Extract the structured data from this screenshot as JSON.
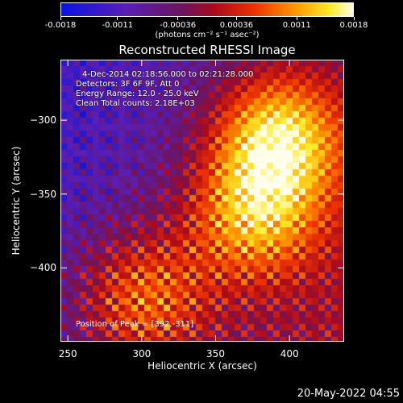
{
  "colorbar": {
    "tick_labels": [
      "-0.0018",
      "-0.0011",
      "-0.00036",
      "0.00036",
      "0.0011",
      "0.0018"
    ],
    "tick_values": [
      -0.0018,
      -0.0011,
      -0.00036,
      0.00036,
      0.0011,
      0.0018
    ],
    "range": [
      -0.0018,
      0.0018
    ],
    "unit_label": "(photons cm⁻² s⁻¹ asec⁻²)"
  },
  "info": {
    "line1": "4-Dec-2014 02:18:56.000 to 02:21:28.000",
    "line2": "Detectors: 3F 6F 9F, Att 0",
    "line3": "Energy Range: 12.0 - 25.0 keV",
    "line4": "Clean     Total counts: 2.18E+03"
  },
  "peak_text": "Position of Peak = [392,-311]",
  "footer_date": "20-May-2022 04:55",
  "chart_data": {
    "type": "heatmap",
    "title": "Reconstructed RHESSI Image",
    "xlabel": "Heliocentric X (arcsec)",
    "ylabel": "Heliocentric Y (arcsec)",
    "xlim": [
      245,
      437
    ],
    "ylim": [
      -450,
      -259
    ],
    "x_ticks": [
      250,
      300,
      350,
      400
    ],
    "x_tick_labels": [
      "250",
      "300",
      "350",
      "400"
    ],
    "y_ticks": [
      -300,
      -350,
      -400
    ],
    "y_tick_labels": [
      "−300",
      "−350",
      "−400"
    ],
    "colormap": "blue-purple-red-yellow-white",
    "peak_position": [
      392,
      -311
    ],
    "bright_regions": [
      {
        "x": 392,
        "y": -311,
        "relative_intensity": 1.0
      },
      {
        "x": 375,
        "y": -365,
        "relative_intensity": 0.8
      },
      {
        "x": 300,
        "y": -420,
        "relative_intensity": 0.7
      }
    ]
  }
}
